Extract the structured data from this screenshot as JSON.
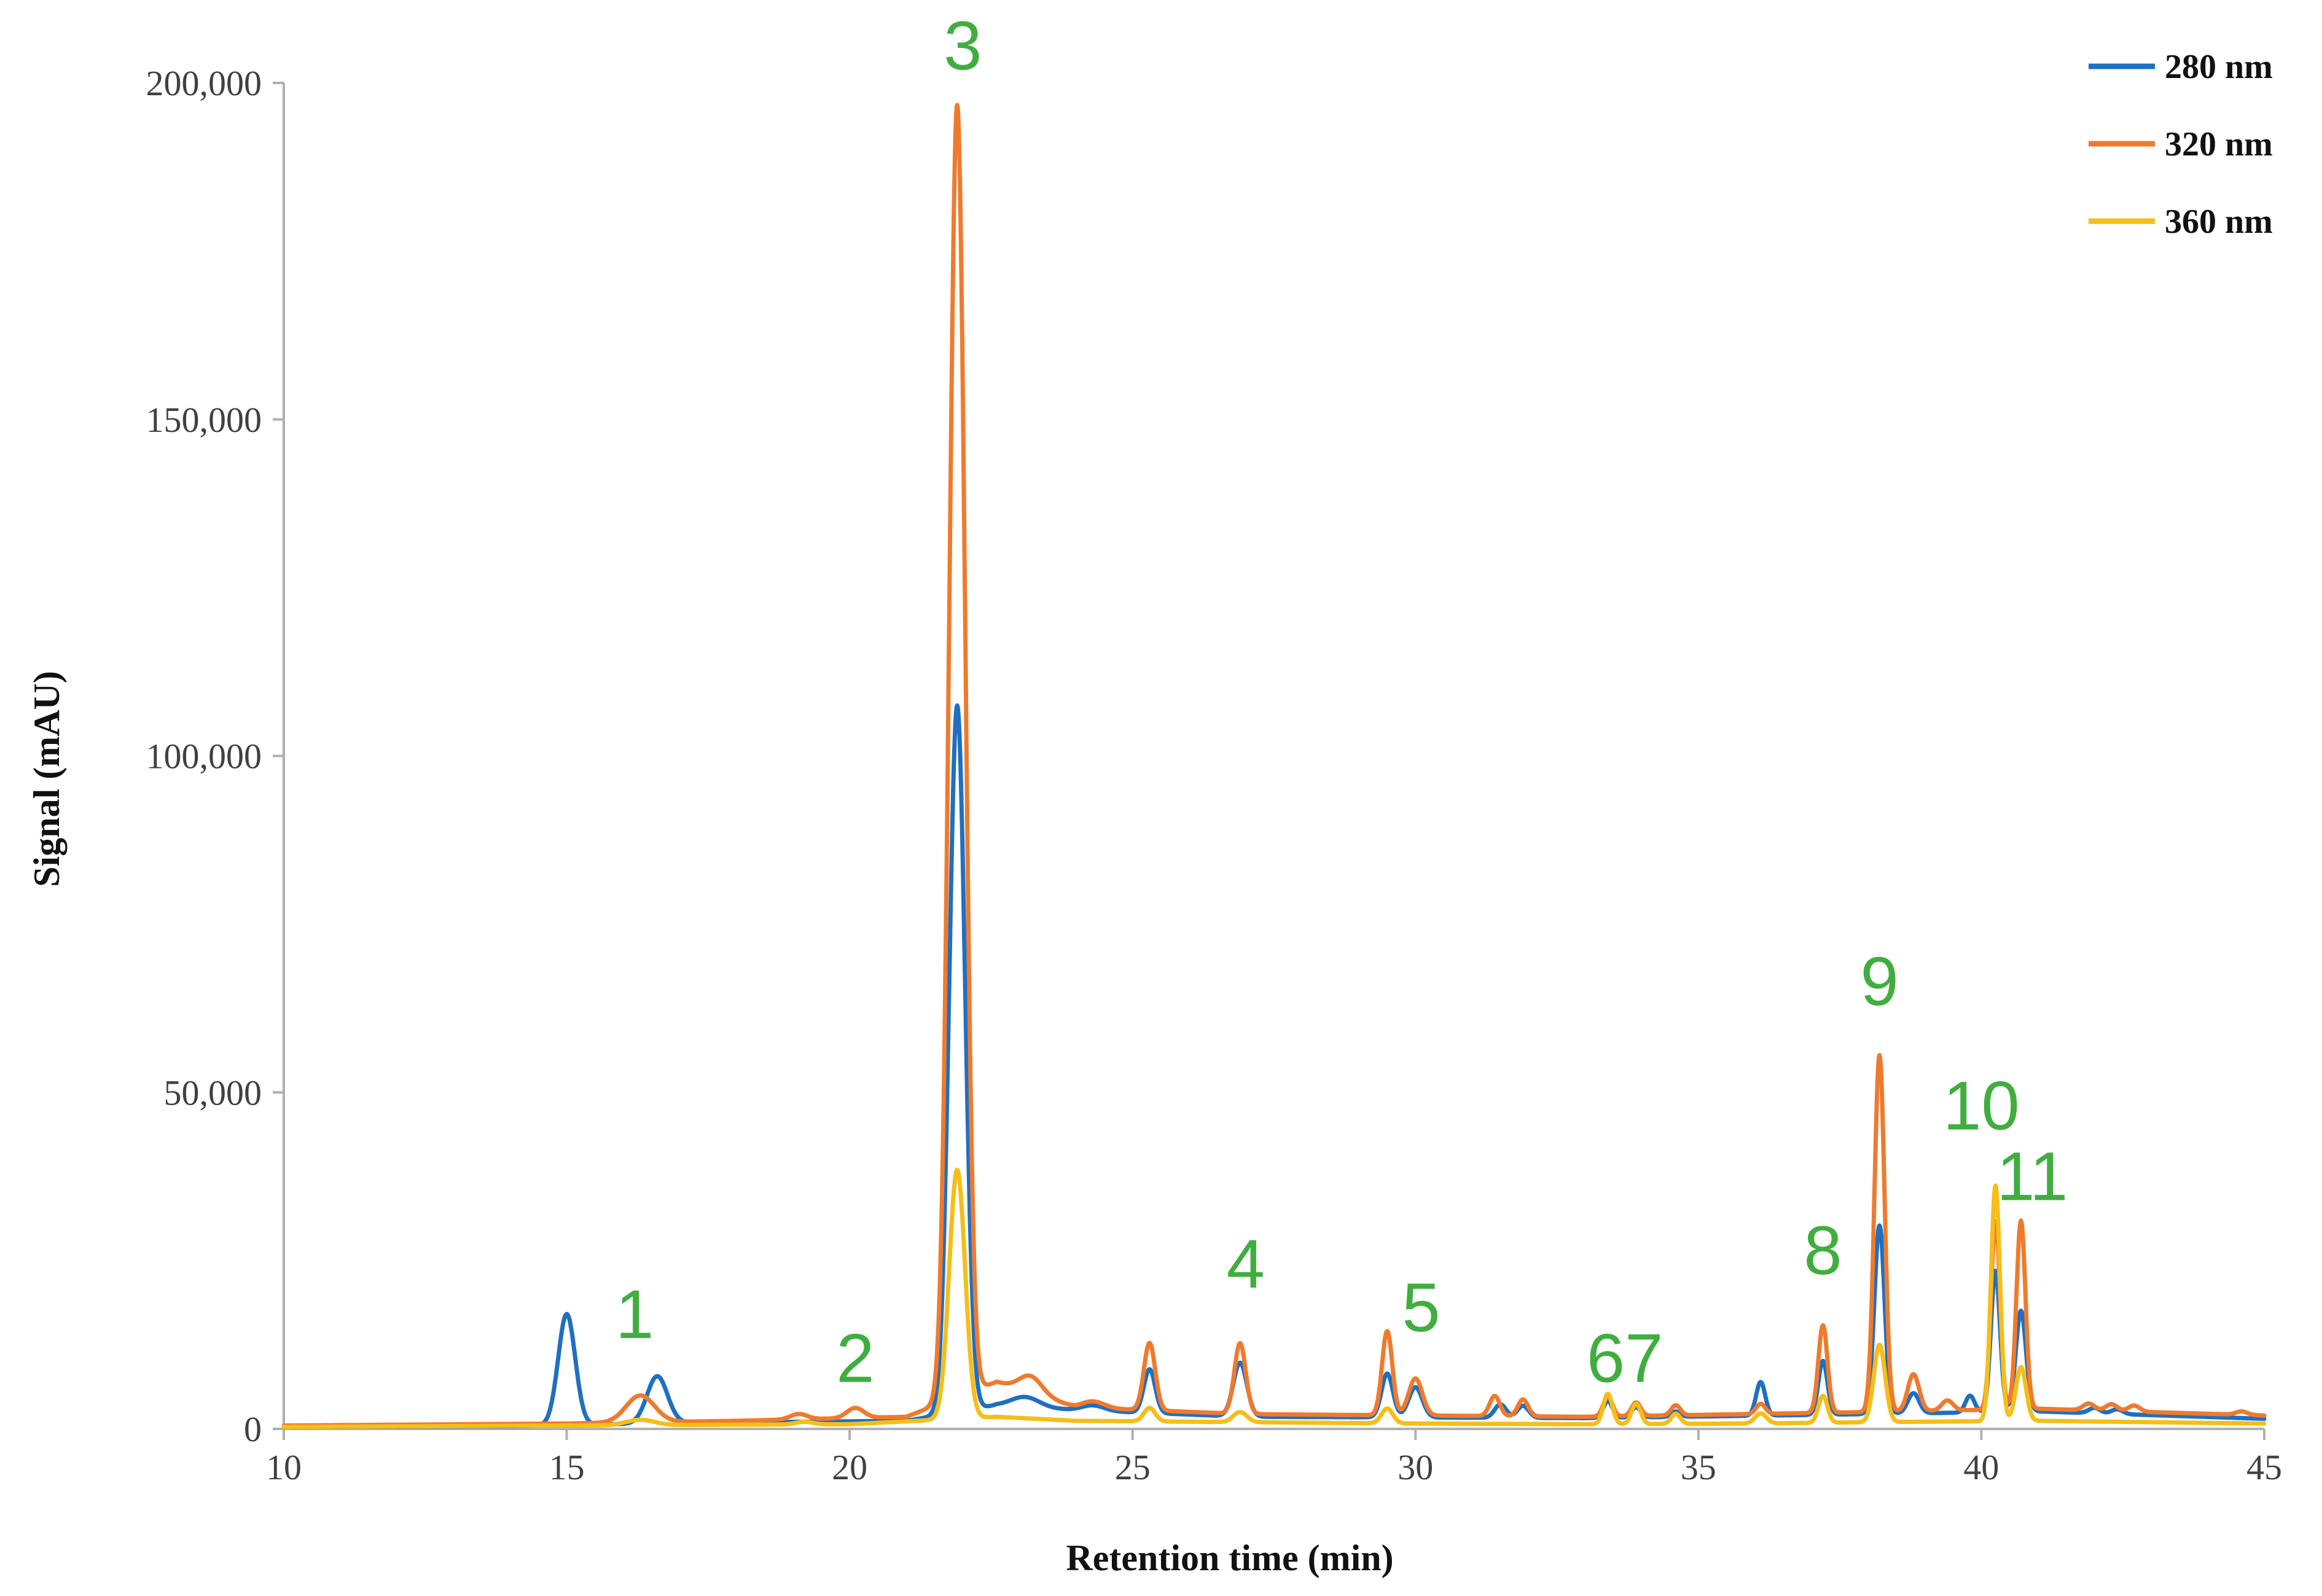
{
  "chart_data": {
    "type": "line",
    "title": "",
    "xlabel": "Retention time (min)",
    "ylabel": "Signal (mAU)",
    "xlim": [
      10,
      45
    ],
    "ylim": [
      0,
      200000
    ],
    "x_ticks": [
      10,
      15,
      20,
      25,
      30,
      35,
      40,
      45
    ],
    "x_tick_labels": [
      "10",
      "15",
      "20",
      "25",
      "30",
      "35",
      "40",
      "45"
    ],
    "y_ticks": [
      0,
      50000,
      100000,
      150000,
      200000
    ],
    "y_tick_labels": [
      "0",
      "50,000",
      "100,000",
      "150,000",
      "200,000"
    ],
    "grid": false,
    "legend_position": "top-right",
    "series": [
      {
        "name": "280 nm",
        "color": "#1f6fc2",
        "baseline": [
          [
            10,
            300
          ],
          [
            14,
            400
          ],
          [
            17,
            900
          ],
          [
            21,
            1200
          ],
          [
            22.6,
            3500
          ],
          [
            24,
            2800
          ],
          [
            27,
            1800
          ],
          [
            33,
            1600
          ],
          [
            38,
            2200
          ],
          [
            41,
            2600
          ],
          [
            45,
            1500
          ]
        ],
        "peaks": [
          [
            15.0,
            16500,
            0.15
          ],
          [
            16.6,
            7000,
            0.18
          ],
          [
            21.9,
            105000,
            0.14
          ],
          [
            23.1,
            1500,
            0.25
          ],
          [
            24.3,
            800,
            0.2
          ],
          [
            25.3,
            6500,
            0.1
          ],
          [
            26.9,
            8000,
            0.12
          ],
          [
            29.5,
            6500,
            0.1
          ],
          [
            30.0,
            4500,
            0.12
          ],
          [
            31.5,
            2000,
            0.1
          ],
          [
            31.9,
            1800,
            0.1
          ],
          [
            33.4,
            2500,
            0.08
          ],
          [
            33.9,
            1500,
            0.08
          ],
          [
            34.6,
            800,
            0.08
          ],
          [
            36.1,
            5000,
            0.08
          ],
          [
            37.2,
            8000,
            0.08
          ],
          [
            38.2,
            28000,
            0.09
          ],
          [
            38.8,
            3000,
            0.1
          ],
          [
            39.8,
            2500,
            0.08
          ],
          [
            40.25,
            21000,
            0.08
          ],
          [
            40.7,
            15000,
            0.09
          ],
          [
            42.0,
            800,
            0.1
          ],
          [
            42.4,
            700,
            0.1
          ]
        ]
      },
      {
        "name": "320 nm",
        "color": "#f07a2c",
        "baseline": [
          [
            10,
            500
          ],
          [
            15,
            800
          ],
          [
            18,
            1200
          ],
          [
            21,
            1800
          ],
          [
            22.6,
            7000
          ],
          [
            24,
            3200
          ],
          [
            27,
            2200
          ],
          [
            33,
            1800
          ],
          [
            38,
            2500
          ],
          [
            41,
            3000
          ],
          [
            45,
            2000
          ]
        ],
        "peaks": [
          [
            16.3,
            4000,
            0.25
          ],
          [
            19.1,
            800,
            0.15
          ],
          [
            20.1,
            1500,
            0.15
          ],
          [
            21.9,
            192000,
            0.14
          ],
          [
            23.2,
            2500,
            0.2
          ],
          [
            24.3,
            1000,
            0.2
          ],
          [
            25.3,
            10000,
            0.1
          ],
          [
            26.9,
            10500,
            0.1
          ],
          [
            29.5,
            12500,
            0.09
          ],
          [
            30.0,
            5500,
            0.12
          ],
          [
            31.4,
            3000,
            0.09
          ],
          [
            31.9,
            2500,
            0.09
          ],
          [
            33.4,
            3000,
            0.08
          ],
          [
            33.9,
            2000,
            0.08
          ],
          [
            34.6,
            1500,
            0.08
          ],
          [
            36.1,
            1500,
            0.08
          ],
          [
            37.2,
            13000,
            0.08
          ],
          [
            38.2,
            53000,
            0.09
          ],
          [
            38.8,
            5500,
            0.1
          ],
          [
            39.4,
            1500,
            0.1
          ],
          [
            40.25,
            28000,
            0.08
          ],
          [
            40.7,
            28000,
            0.08
          ],
          [
            41.9,
            1000,
            0.1
          ],
          [
            42.3,
            1000,
            0.1
          ],
          [
            42.7,
            900,
            0.1
          ],
          [
            44.6,
            500,
            0.1
          ]
        ]
      },
      {
        "name": "360 nm",
        "color": "#f5be18",
        "baseline": [
          [
            10,
            300
          ],
          [
            15,
            500
          ],
          [
            20,
            700
          ],
          [
            22.6,
            1800
          ],
          [
            24,
            1200
          ],
          [
            30,
            800
          ],
          [
            33,
            700
          ],
          [
            36,
            800
          ],
          [
            38,
            1000
          ],
          [
            41,
            1200
          ],
          [
            45,
            800
          ]
        ],
        "peaks": [
          [
            16.3,
            800,
            0.25
          ],
          [
            19.2,
            400,
            0.15
          ],
          [
            21.9,
            37000,
            0.14
          ],
          [
            25.3,
            2000,
            0.1
          ],
          [
            26.9,
            1500,
            0.12
          ],
          [
            29.5,
            2200,
            0.1
          ],
          [
            33.4,
            4500,
            0.08
          ],
          [
            33.9,
            3000,
            0.08
          ],
          [
            34.6,
            1500,
            0.08
          ],
          [
            36.1,
            1500,
            0.1
          ],
          [
            37.2,
            4000,
            0.08
          ],
          [
            38.2,
            11500,
            0.1
          ],
          [
            40.25,
            35000,
            0.08
          ],
          [
            40.7,
            8000,
            0.09
          ]
        ]
      }
    ],
    "annotations": [
      {
        "text": "1",
        "x": 16.2,
        "y": 13500
      },
      {
        "text": "2",
        "x": 20.1,
        "y": 7000
      },
      {
        "text": "3",
        "x": 22.0,
        "y": 202000
      },
      {
        "text": "4",
        "x": 27.0,
        "y": 21000
      },
      {
        "text": "5",
        "x": 30.1,
        "y": 14500
      },
      {
        "text": "67",
        "x": 33.7,
        "y": 7000
      },
      {
        "text": "8",
        "x": 37.2,
        "y": 23000
      },
      {
        "text": "9",
        "x": 38.2,
        "y": 63000
      },
      {
        "text": "10",
        "x": 40.0,
        "y": 44500
      },
      {
        "text": "11",
        "x": 40.9,
        "y": 34000
      }
    ]
  }
}
